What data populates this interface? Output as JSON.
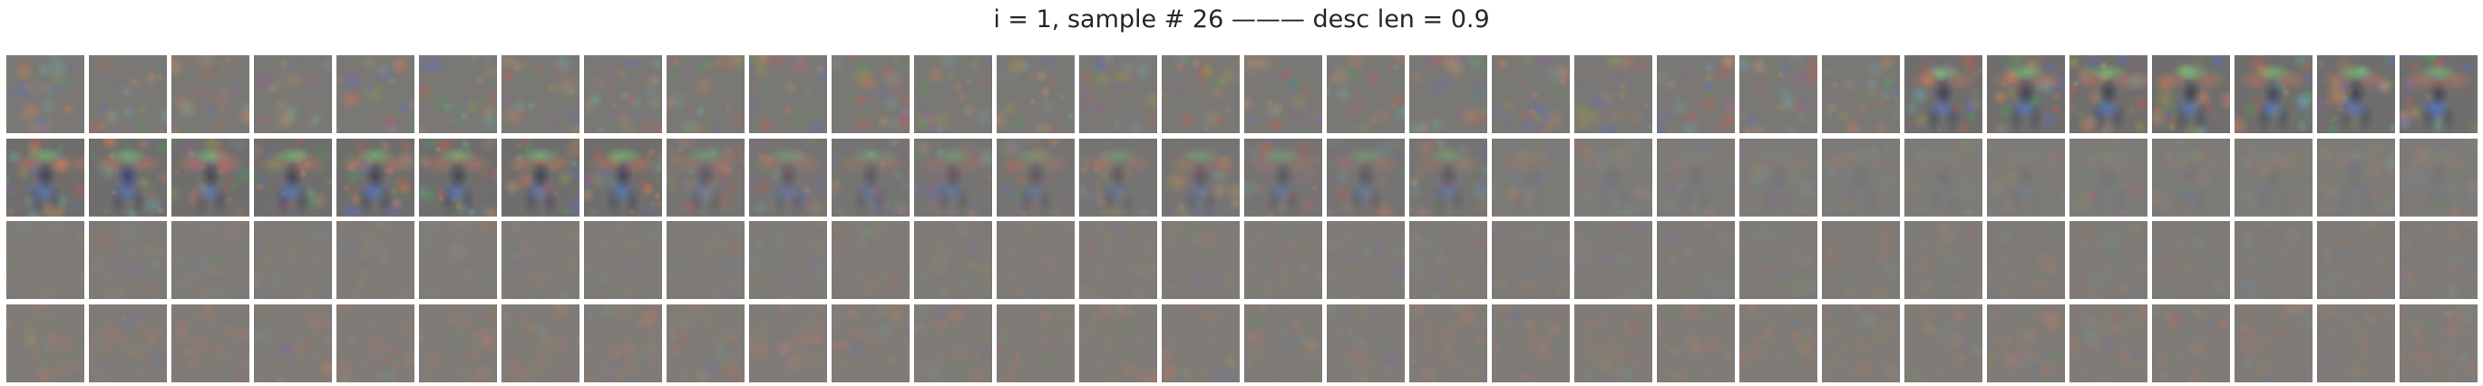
{
  "figure": {
    "title": "i = 1, sample # 26 ——— desc len = 0.9",
    "rows": 4,
    "cols": 30
  },
  "tiles": {
    "row0": {
      "style": "noise",
      "strong_pattern_from_col": 23,
      "pattern_intensity": 0.95
    },
    "row1": {
      "style": "pattern-fading",
      "strong_cols": [
        0,
        1,
        2,
        3,
        4,
        5,
        6,
        7
      ],
      "medium_cols": [
        8,
        9,
        10,
        11,
        12,
        13,
        14,
        15,
        16,
        17
      ],
      "faint_cols": [
        18,
        19,
        20,
        21,
        22,
        23,
        24,
        25,
        26,
        27,
        28,
        29
      ]
    },
    "row2": {
      "style": "faint"
    },
    "row3": {
      "style": "faint-warm"
    }
  },
  "colors": {
    "tile_base": "#7c7a76",
    "title_text": "#262626",
    "background": "#ffffff"
  }
}
